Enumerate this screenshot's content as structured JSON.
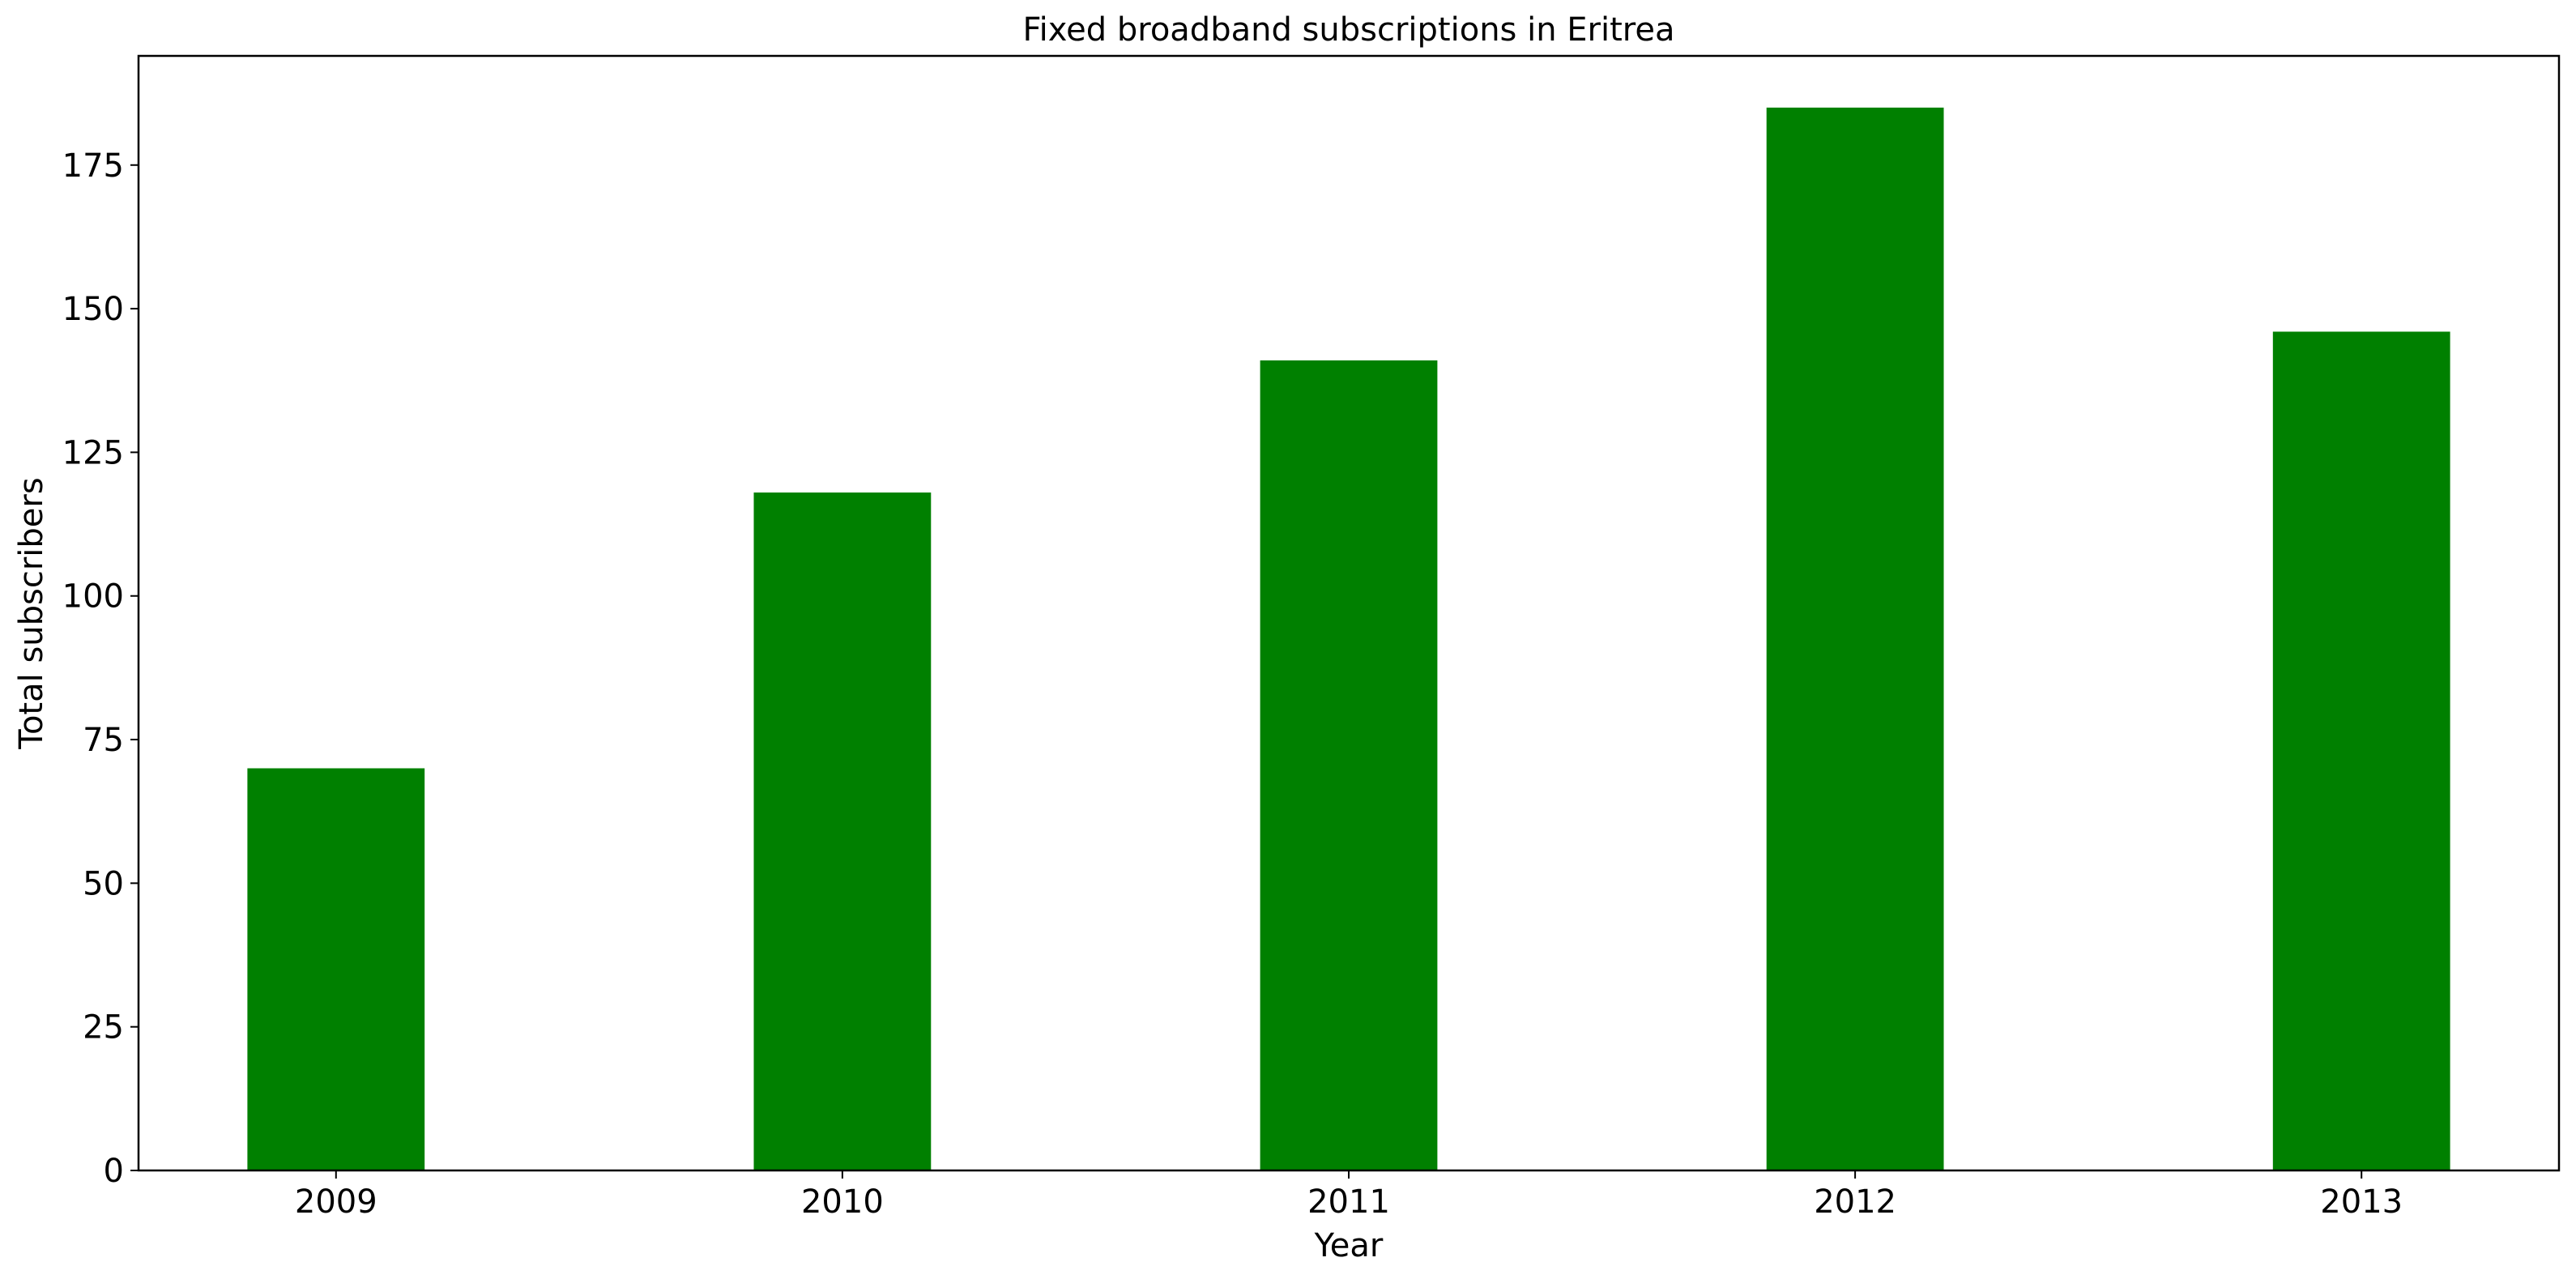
{
  "chart_data": {
    "type": "bar",
    "title": "Fixed broadband subscriptions in Eritrea",
    "xlabel": "Year",
    "ylabel": "Total subscribers",
    "categories": [
      "2009",
      "2010",
      "2011",
      "2012",
      "2013"
    ],
    "values": [
      70,
      118,
      141,
      185,
      146
    ],
    "ylim": [
      0,
      194
    ],
    "yticks": [
      0,
      25,
      50,
      75,
      100,
      125,
      150,
      175
    ],
    "bar_color": "#008000",
    "grid": false,
    "legend": "none"
  }
}
